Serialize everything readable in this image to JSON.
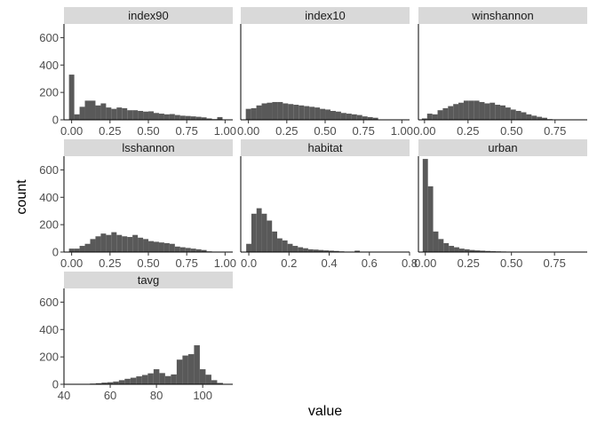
{
  "chart_data": {
    "type": "bar",
    "title": "",
    "xlabel": "value",
    "ylabel": "count",
    "bar_color": "#595959",
    "strip_color": "#d9d9d9",
    "ylim": [
      0,
      700
    ],
    "yticks": [
      0,
      200,
      400,
      600
    ],
    "ytick_labels": [
      "0",
      "200",
      "400",
      "600"
    ],
    "grid": false,
    "legend": "none",
    "panels": [
      {
        "name": "index90",
        "xlim": [
          -0.05,
          1.05
        ],
        "xticks": [
          0,
          0.25,
          0.5,
          0.75,
          1
        ],
        "xtick_labels": [
          "0.00",
          "0.25",
          "0.50",
          "0.75",
          "1.00"
        ],
        "bin_width": 0.0345,
        "x": [
          0,
          0.0345,
          0.069,
          0.1035,
          0.138,
          0.1725,
          0.207,
          0.2415,
          0.276,
          0.3105,
          0.345,
          0.3795,
          0.414,
          0.4485,
          0.483,
          0.5175,
          0.552,
          0.5865,
          0.621,
          0.6555,
          0.69,
          0.7245,
          0.759,
          0.7935,
          0.828,
          0.8625,
          0.897,
          0.9315,
          0.966,
          1.0
        ],
        "values": [
          330,
          40,
          95,
          140,
          140,
          105,
          120,
          90,
          80,
          90,
          85,
          70,
          70,
          65,
          60,
          62,
          50,
          45,
          40,
          42,
          35,
          30,
          28,
          25,
          22,
          18,
          10,
          5,
          20,
          0
        ]
      },
      {
        "name": "index10",
        "xlim": [
          -0.05,
          1.05
        ],
        "xticks": [
          0,
          0.25,
          0.5,
          0.75,
          1
        ],
        "xtick_labels": [
          "0.00",
          "0.25",
          "0.50",
          "0.75",
          "1.00"
        ],
        "bin_width": 0.0345,
        "x": [
          0,
          0.0345,
          0.069,
          0.1035,
          0.138,
          0.1725,
          0.207,
          0.2415,
          0.276,
          0.3105,
          0.345,
          0.3795,
          0.414,
          0.4485,
          0.483,
          0.5175,
          0.552,
          0.5865,
          0.621,
          0.6555,
          0.69,
          0.7245,
          0.759,
          0.7935,
          0.828
        ],
        "values": [
          80,
          85,
          105,
          120,
          125,
          130,
          130,
          120,
          115,
          110,
          105,
          100,
          95,
          90,
          80,
          75,
          65,
          60,
          50,
          45,
          40,
          35,
          25,
          20,
          15
        ]
      },
      {
        "name": "winshannon",
        "xlim": [
          -0.035,
          0.935
        ],
        "xticks": [
          0,
          0.25,
          0.5,
          0.75
        ],
        "xtick_labels": [
          "0.00",
          "0.25",
          "0.50",
          "0.75"
        ],
        "bin_width": 0.03,
        "x": [
          0,
          0.03,
          0.06,
          0.09,
          0.12,
          0.15,
          0.18,
          0.21,
          0.24,
          0.27,
          0.3,
          0.33,
          0.36,
          0.39,
          0.42,
          0.45,
          0.48,
          0.51,
          0.54,
          0.57,
          0.6,
          0.63,
          0.66,
          0.69,
          0.72
        ],
        "values": [
          10,
          45,
          40,
          70,
          85,
          100,
          115,
          125,
          140,
          140,
          140,
          130,
          120,
          125,
          110,
          105,
          90,
          75,
          65,
          55,
          40,
          30,
          22,
          15,
          5
        ]
      },
      {
        "name": "lsshannon",
        "xlim": [
          -0.05,
          1.05
        ],
        "xticks": [
          0,
          0.25,
          0.5,
          0.75,
          1
        ],
        "xtick_labels": [
          "0.00",
          "0.25",
          "0.50",
          "0.75",
          "1.00"
        ],
        "bin_width": 0.0345,
        "x": [
          0,
          0.0345,
          0.069,
          0.1035,
          0.138,
          0.1725,
          0.207,
          0.2415,
          0.276,
          0.3105,
          0.345,
          0.3795,
          0.414,
          0.4485,
          0.483,
          0.5175,
          0.552,
          0.5865,
          0.621,
          0.6555,
          0.69,
          0.7245,
          0.759,
          0.7935,
          0.828,
          0.8625,
          0.897
        ],
        "values": [
          25,
          25,
          45,
          60,
          95,
          115,
          135,
          125,
          145,
          125,
          115,
          110,
          125,
          105,
          95,
          80,
          75,
          70,
          65,
          60,
          40,
          35,
          30,
          25,
          20,
          15,
          5
        ]
      },
      {
        "name": "habitat",
        "xlim": [
          -0.04,
          0.8
        ],
        "xticks": [
          0,
          0.2,
          0.4,
          0.6,
          0.8
        ],
        "xtick_labels": [
          "0.0",
          "0.2",
          "0.4",
          "0.6",
          "0.8"
        ],
        "bin_width": 0.0257,
        "x": [
          0,
          0.0257,
          0.0514,
          0.0771,
          0.1028,
          0.1285,
          0.1542,
          0.1799,
          0.2056,
          0.2313,
          0.257,
          0.2827,
          0.3084,
          0.3341,
          0.3598,
          0.3855,
          0.4112,
          0.4369,
          0.4626,
          0.4883,
          0.514,
          0.5397
        ],
        "values": [
          60,
          280,
          320,
          280,
          230,
          150,
          100,
          85,
          60,
          45,
          35,
          28,
          20,
          18,
          15,
          12,
          10,
          8,
          5,
          3,
          2,
          10
        ]
      },
      {
        "name": "urban",
        "xlim": [
          -0.04,
          0.94
        ],
        "xticks": [
          0,
          0.25,
          0.5,
          0.75
        ],
        "xtick_labels": [
          "0.00",
          "0.25",
          "0.50",
          "0.75"
        ],
        "bin_width": 0.0303,
        "x": [
          0,
          0.0303,
          0.0606,
          0.0909,
          0.1212,
          0.1515,
          0.1818,
          0.2121,
          0.2424,
          0.2727,
          0.303,
          0.3333,
          0.3636,
          0.3939,
          0.4242,
          0.4545,
          0.4848
        ],
        "values": [
          680,
          480,
          150,
          95,
          65,
          45,
          35,
          25,
          20,
          15,
          12,
          10,
          8,
          6,
          5,
          4,
          3
        ]
      },
      {
        "name": "tavg",
        "xlim": [
          40,
          113
        ],
        "xticks": [
          40,
          60,
          80,
          100
        ],
        "xtick_labels": [
          "40",
          "60",
          "80",
          "100"
        ],
        "bin_width": 2.5,
        "x": [
          42.5,
          45,
          47.5,
          50,
          52.5,
          55,
          57.5,
          60,
          62.5,
          65,
          67.5,
          70,
          72.5,
          75,
          77.5,
          80,
          82.5,
          85,
          87.5,
          90,
          92.5,
          95,
          97.5,
          100,
          102.5,
          105,
          107.5
        ],
        "values": [
          2,
          2,
          3,
          3,
          5,
          8,
          12,
          15,
          20,
          30,
          40,
          48,
          58,
          68,
          80,
          110,
          82,
          60,
          72,
          180,
          210,
          220,
          285,
          110,
          70,
          30,
          10
        ]
      }
    ]
  }
}
